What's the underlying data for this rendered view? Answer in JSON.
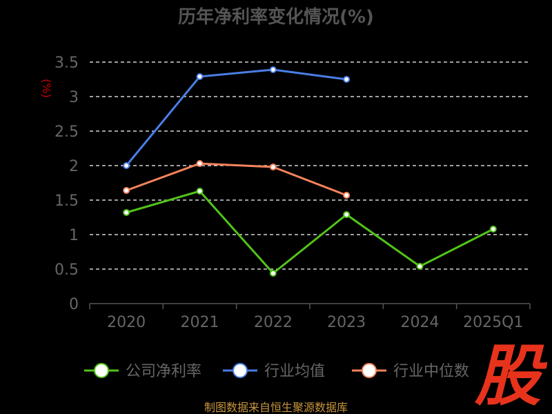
{
  "chart_data": {
    "type": "line",
    "title": "历年净利率变化情况(%)",
    "ylabel": "(%)",
    "xlabel": "",
    "categories": [
      "2020",
      "2021",
      "2022",
      "2023",
      "2024",
      "2025Q1"
    ],
    "ylim": [
      0,
      3.5
    ],
    "yticks": [
      "0",
      "0.5",
      "1",
      "1.5",
      "2",
      "2.5",
      "3",
      "3.5"
    ],
    "grid": true,
    "legend_position": "bottom",
    "series": [
      {
        "name": "公司净利率",
        "color": "#52c41a",
        "values": [
          1.32,
          1.63,
          0.44,
          1.29,
          0.54,
          1.08
        ]
      },
      {
        "name": "行业均值",
        "color": "#4a7ee6",
        "values": [
          2.0,
          3.29,
          3.39,
          3.25,
          null,
          null
        ]
      },
      {
        "name": "行业中位数",
        "color": "#f5845c",
        "values": [
          1.64,
          2.03,
          1.98,
          1.57,
          null,
          null
        ]
      }
    ]
  },
  "footer": {
    "source": "制图数据来自恒生聚源数据库"
  },
  "watermark": {
    "text": "股"
  }
}
